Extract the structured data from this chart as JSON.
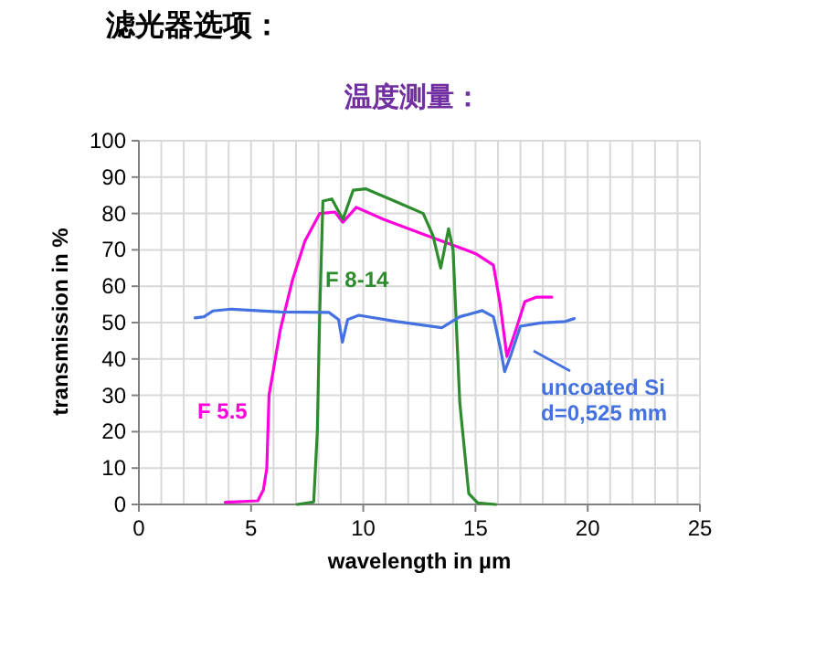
{
  "chart_data": {
    "type": "line",
    "title": "滤光器选项：",
    "subtitle": "温度测量：",
    "xlabel": "wavelength in µm",
    "ylabel": "transmission in %",
    "xlim": [
      0,
      25
    ],
    "ylim": [
      0,
      100
    ],
    "xticks": [
      0,
      {
        "value": 1,
        "label": null
      },
      {
        "value": 2,
        "label": null
      },
      {
        "value": 3,
        "label": null
      },
      {
        "value": 4,
        "label": null
      },
      5,
      {
        "value": 6,
        "label": null
      },
      {
        "value": 7,
        "label": null
      },
      {
        "value": 8,
        "label": null
      },
      {
        "value": 9,
        "label": null
      },
      10,
      {
        "value": 11,
        "label": null
      },
      {
        "value": 12,
        "label": null
      },
      {
        "value": 13,
        "label": null
      },
      {
        "value": 14,
        "label": null
      },
      15,
      {
        "value": 16,
        "label": null
      },
      {
        "value": 17,
        "label": null
      },
      {
        "value": 18,
        "label": null
      },
      {
        "value": 19,
        "label": null
      },
      20,
      {
        "value": 21,
        "label": null
      },
      {
        "value": 22,
        "label": null
      },
      {
        "value": 23,
        "label": null
      },
      {
        "value": 24,
        "label": null
      },
      25
    ],
    "yticks": [
      0,
      10,
      20,
      30,
      40,
      50,
      60,
      70,
      80,
      90,
      100
    ],
    "grid": true,
    "marker": "none",
    "line_style": "solid",
    "series": [
      {
        "name": "F 5.5",
        "color": "#ff00dd",
        "x": [
          3.85,
          5.3,
          5.55,
          5.7,
          5.8,
          6.3,
          6.84,
          7.4,
          8.06,
          8.74,
          9.09,
          9.69,
          10.9,
          12.8,
          15.0,
          15.8,
          16.1,
          16.4,
          16.8,
          17.2,
          17.7,
          18.4
        ],
        "values": [
          0.6,
          1,
          4,
          10,
          30,
          48,
          61.6,
          72.4,
          80,
          80.4,
          77.6,
          81.7,
          78.4,
          74,
          69,
          65.8,
          55,
          40.7,
          48,
          55.8,
          57,
          57
        ]
      },
      {
        "name": "F 8-14",
        "color": "#2e8b2e",
        "x": [
          7.05,
          7.79,
          7.95,
          8.06,
          8.2,
          8.6,
          9.09,
          9.55,
          10.1,
          11.7,
          12.67,
          13.1,
          13.45,
          13.8,
          14.0,
          14.3,
          14.7,
          15.1,
          15.9
        ],
        "values": [
          0,
          0.7,
          20,
          53,
          83.4,
          84,
          78.4,
          86.4,
          86.8,
          82.6,
          80,
          74,
          65,
          75.8,
          70,
          28,
          3,
          0.4,
          0
        ]
      },
      {
        "name": "uncoated Si d=0,525 mm",
        "color": "#4472e0",
        "x": [
          2.5,
          2.9,
          3.3,
          4.1,
          6.3,
          8.47,
          8.9,
          9.07,
          9.3,
          9.8,
          11.5,
          13.5,
          14.3,
          15.3,
          15.8,
          16.1,
          16.3,
          16.6,
          17.0,
          17.9,
          19.0,
          19.4
        ],
        "values": [
          51.3,
          51.6,
          53.2,
          53.7,
          52.9,
          52.8,
          50.8,
          44.6,
          50.8,
          52,
          50.3,
          48.6,
          51.6,
          53.3,
          51.6,
          43.2,
          36.5,
          41.5,
          49,
          49.9,
          50.3,
          51.1
        ]
      }
    ]
  }
}
